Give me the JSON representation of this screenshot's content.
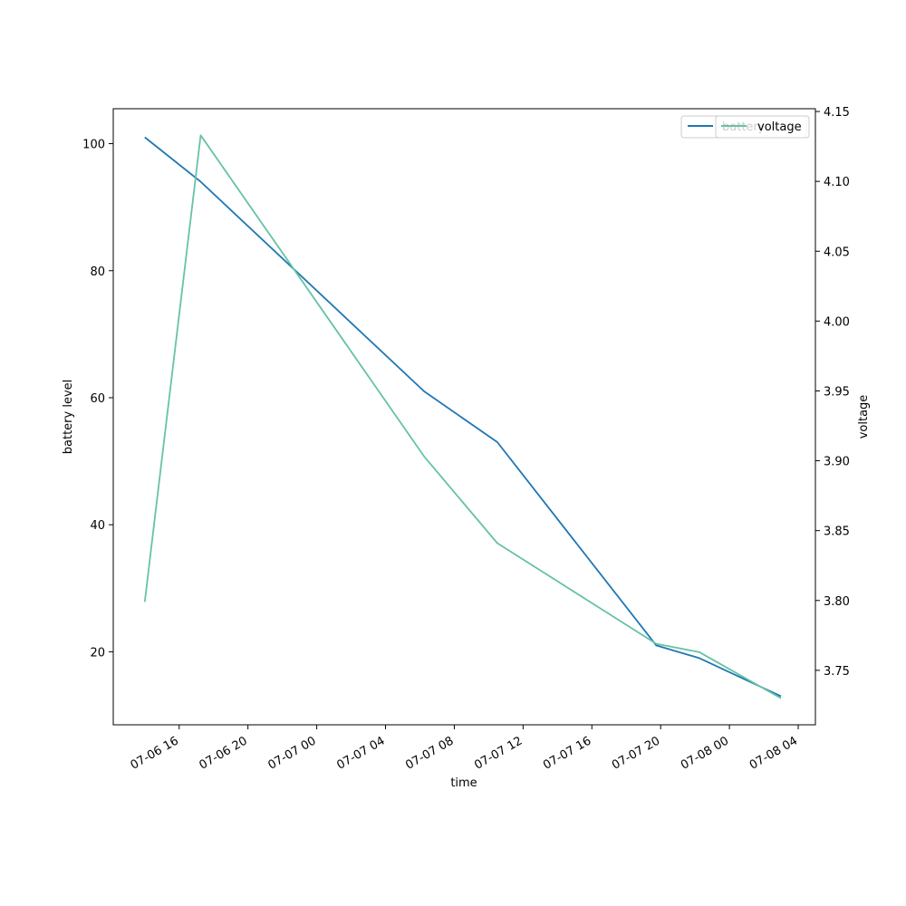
{
  "chart_data": {
    "type": "line",
    "xlabel": "time",
    "ylabel_left": "battery level",
    "ylabel_right": "voltage",
    "x_ticks": [
      "07-06 16",
      "07-06 20",
      "07-07 00",
      "07-07 04",
      "07-07 08",
      "07-07 12",
      "07-07 16",
      "07-07 20",
      "07-08 00",
      "07-08 04"
    ],
    "y_left_ticks": [
      20,
      40,
      60,
      80,
      100
    ],
    "y_right_ticks": [
      "3.75",
      "3.80",
      "3.85",
      "3.90",
      "3.95",
      "4.00",
      "4.05",
      "4.10",
      "4.15"
    ],
    "xlim": [
      "2023-07-06 12:10",
      "2023-07-08 05:00"
    ],
    "ylim_left": [
      8.5,
      105.5
    ],
    "ylim_right": [
      3.711,
      4.152
    ],
    "grid": false,
    "legend_position": "top-right",
    "series": [
      {
        "name": "battery",
        "axis": "left",
        "color": "#1f77b4",
        "x": [
          "2023-07-06 14:00",
          "2023-07-06 17:15",
          "2023-07-07 06:15",
          "2023-07-07 10:30",
          "2023-07-07 19:45",
          "2023-07-07 22:15",
          "2023-07-08 03:00"
        ],
        "y": [
          101,
          94,
          61,
          53,
          21,
          19,
          13
        ]
      },
      {
        "name": "voltage",
        "axis": "right",
        "color": "#66c2a5",
        "x": [
          "2023-07-06 14:00",
          "2023-07-06 17:15",
          "2023-07-07 06:15",
          "2023-07-07 10:30",
          "2023-07-07 19:45",
          "2023-07-07 22:15",
          "2023-07-08 03:00"
        ],
        "y": [
          3.799,
          4.133,
          3.903,
          3.841,
          3.769,
          3.763,
          3.73
        ]
      }
    ],
    "legend_entries": [
      "battery",
      "voltage"
    ]
  }
}
